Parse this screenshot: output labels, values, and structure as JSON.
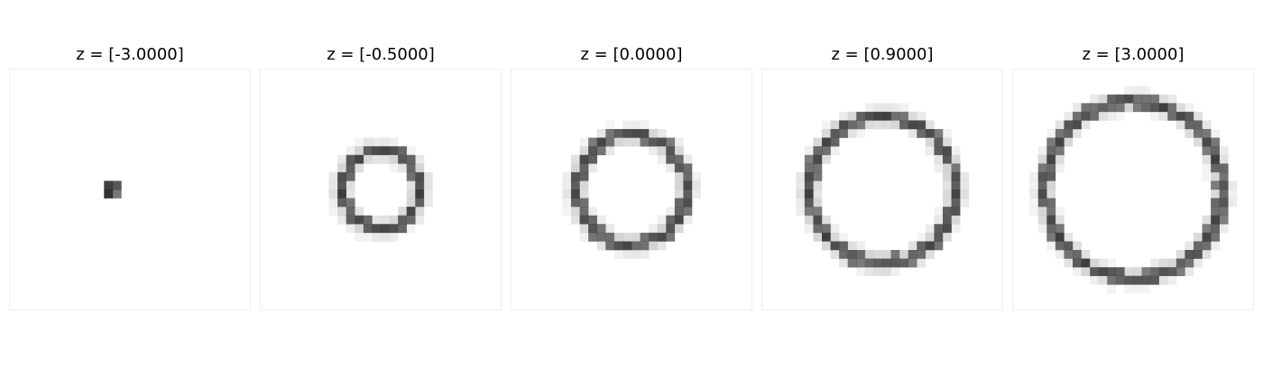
{
  "figure": {
    "panels": [
      {
        "title": "z = [-3.0000]",
        "shape": "dot",
        "radius_fraction": 0.0
      },
      {
        "title": "z = [-0.5000]",
        "shape": "ring",
        "radius_fraction": 0.16
      },
      {
        "title": "z = [0.0000]",
        "shape": "ring",
        "radius_fraction": 0.226
      },
      {
        "title": "z = [0.9000]",
        "shape": "ring",
        "radius_fraction": 0.301
      },
      {
        "title": "z = [3.0000]",
        "shape": "ring",
        "radius_fraction": 0.365
      }
    ],
    "colors": {
      "ink": "#3a3a3a",
      "ink_dark": "#1e1e1e",
      "ink_light": "#bdbdbd",
      "frame": "#eeeeee",
      "background": "#ffffff"
    }
  }
}
